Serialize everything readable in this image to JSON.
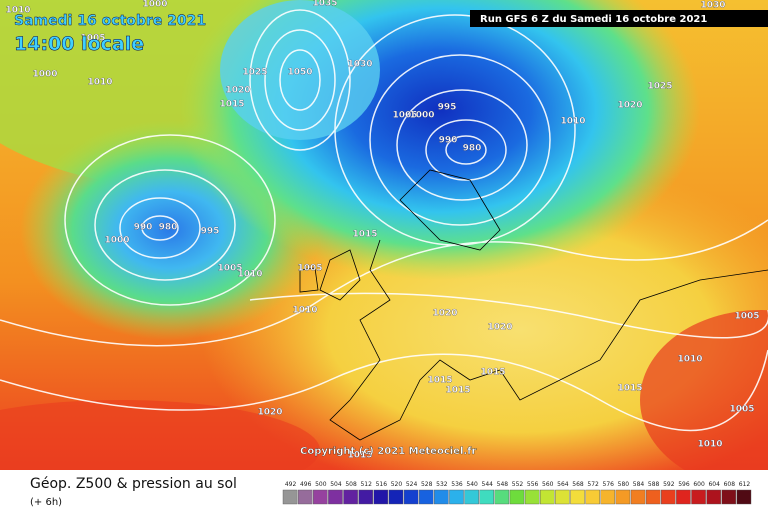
{
  "header": {
    "date": "Samedi 16 octobre 2021",
    "time": "14:00 locale",
    "run": "Run GFS 6 Z du Samedi 16 octobre 2021"
  },
  "isobar_labels": [
    1010,
    1005,
    1000,
    1010,
    1000,
    1025,
    1050,
    1020,
    1015,
    1030,
    1035,
    1030,
    1025,
    1020,
    1010,
    995,
    1005,
    1000,
    990,
    980,
    990,
    980,
    995,
    1000,
    1015,
    1005,
    1010,
    1005,
    1010,
    1020,
    1020,
    1015,
    1015,
    1015,
    1015,
    1005,
    1010,
    1005,
    1010,
    1020,
    1015
  ],
  "copyright": "Copyright (c) 2021 Meteociel.fr",
  "legend": {
    "title": "Géop. Z500 & pression au sol",
    "subtitle": "(+ 6h)",
    "scale": [
      492,
      496,
      500,
      504,
      508,
      512,
      516,
      520,
      524,
      528,
      532,
      536,
      540,
      544,
      548,
      552,
      556,
      560,
      564,
      568,
      572,
      576,
      580,
      584,
      588,
      592,
      596,
      600,
      604,
      608,
      612
    ]
  }
}
